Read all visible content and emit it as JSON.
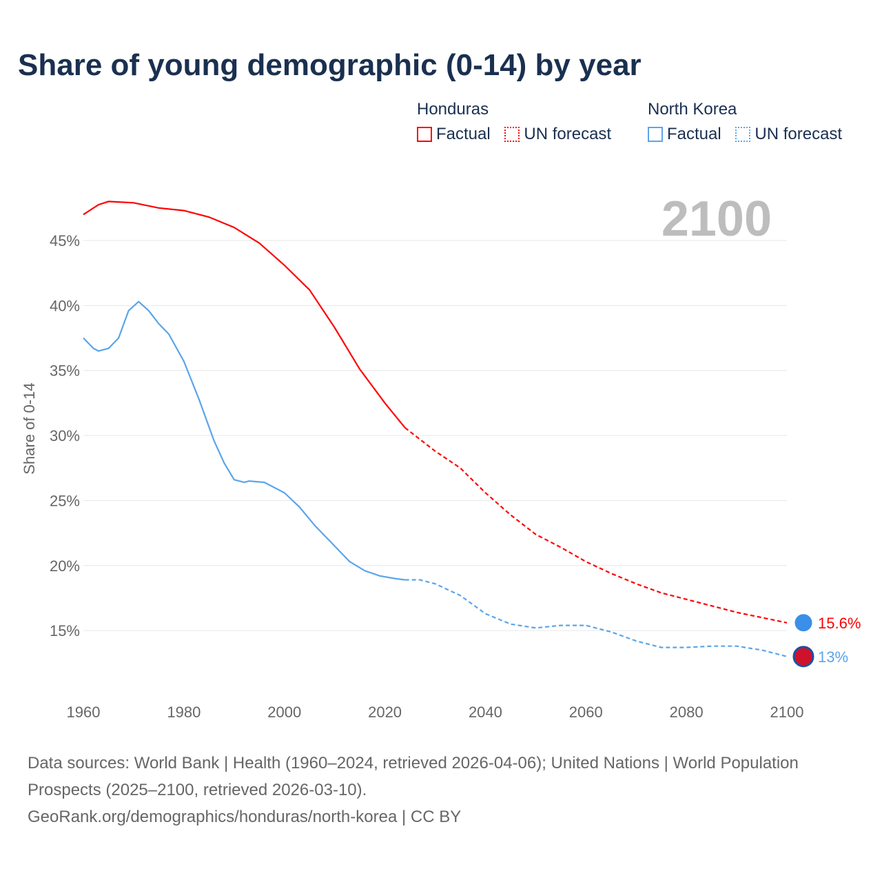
{
  "chart_data": {
    "type": "line",
    "title": "Share of young demographic (0-14) by year",
    "ylabel": "Share of 0-14",
    "xlim": [
      1960,
      2100
    ],
    "ylim": [
      10,
      50
    ],
    "yticks": [
      15,
      20,
      25,
      30,
      35,
      40,
      45
    ],
    "ytick_labels": [
      "15%",
      "20%",
      "25%",
      "30%",
      "35%",
      "40%",
      "45%"
    ],
    "xticks": [
      1960,
      1980,
      2000,
      2020,
      2040,
      2060,
      2080,
      2100
    ],
    "xtick_labels": [
      "1960",
      "1980",
      "2000",
      "2020",
      "2040",
      "2060",
      "2080",
      "2100"
    ],
    "year_label": "2100",
    "forecast_start": 2024,
    "series": [
      {
        "name": "Honduras",
        "color": "#ff0000",
        "end_label": "15.6%",
        "x": [
          1960,
          1963,
          1965,
          1970,
          1975,
          1980,
          1985,
          1990,
          1995,
          2000,
          2005,
          2010,
          2015,
          2020,
          2024,
          2030,
          2035,
          2040,
          2045,
          2050,
          2055,
          2060,
          2065,
          2070,
          2075,
          2080,
          2085,
          2090,
          2095,
          2100
        ],
        "y": [
          47.0,
          47.75,
          48.0,
          47.9,
          47.5,
          47.3,
          46.8,
          46.0,
          44.8,
          43.1,
          41.2,
          38.3,
          35.1,
          32.5,
          30.6,
          28.8,
          27.5,
          25.6,
          23.9,
          22.4,
          21.4,
          20.3,
          19.4,
          18.6,
          17.9,
          17.4,
          16.9,
          16.4,
          16.0,
          15.6
        ]
      },
      {
        "name": "North Korea",
        "color": "#5aa5ea",
        "end_label": "13%",
        "x": [
          1960,
          1962,
          1963,
          1965,
          1967,
          1969,
          1971,
          1973,
          1975,
          1977,
          1980,
          1983,
          1986,
          1988,
          1990,
          1992,
          1993,
          1996,
          2000,
          2003,
          2006,
          2010,
          2013,
          2016,
          2019,
          2022,
          2024,
          2027,
          2030,
          2035,
          2040,
          2045,
          2050,
          2055,
          2060,
          2065,
          2070,
          2075,
          2080,
          2085,
          2090,
          2095,
          2100
        ],
        "y": [
          37.5,
          36.7,
          36.5,
          36.7,
          37.5,
          39.6,
          40.3,
          39.6,
          38.6,
          37.8,
          35.7,
          32.8,
          29.6,
          27.9,
          26.6,
          26.4,
          26.5,
          26.4,
          25.6,
          24.5,
          23.1,
          21.5,
          20.3,
          19.6,
          19.2,
          19.0,
          18.9,
          18.9,
          18.6,
          17.7,
          16.3,
          15.5,
          15.2,
          15.4,
          15.4,
          14.9,
          14.2,
          13.7,
          13.7,
          13.8,
          13.8,
          13.5,
          13.0
        ]
      }
    ]
  },
  "legend": {
    "groups": [
      {
        "name": "Honduras",
        "factual": "Factual",
        "forecast": "UN forecast"
      },
      {
        "name": "North Korea",
        "factual": "Factual",
        "forecast": "UN forecast"
      }
    ]
  },
  "footer": {
    "line1": "Data sources: World Bank | Health (1960–2024, retrieved 2026-04-06); United Nations | World Population Prospects (2025–2100, retrieved 2026-03-10).",
    "line2": "GeoRank.org/demographics/honduras/north-korea | CC BY"
  }
}
